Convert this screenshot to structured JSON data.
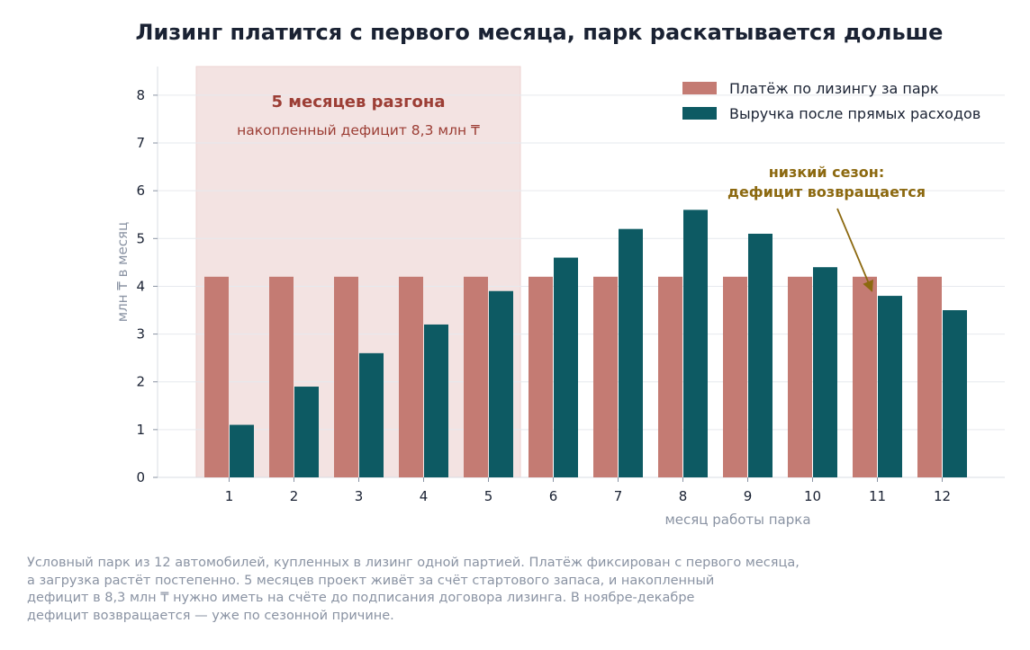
{
  "chart_data": {
    "type": "bar",
    "title": "Лизинг платится с первого месяца, парк раскатывается дольше",
    "xlabel": "месяц работы парка",
    "ylabel": "млн ₸ в месяц",
    "ylim": [
      0,
      8.6
    ],
    "yticks": [
      "0",
      "1",
      "2",
      "3",
      "4",
      "5",
      "6",
      "7",
      "8"
    ],
    "categories": [
      "1",
      "2",
      "3",
      "4",
      "5",
      "6",
      "7",
      "8",
      "9",
      "10",
      "11",
      "12"
    ],
    "series": [
      {
        "name": "Платёж по лизингу за парк",
        "color": "#c47b73",
        "values": [
          4.2,
          4.2,
          4.2,
          4.2,
          4.2,
          4.2,
          4.2,
          4.2,
          4.2,
          4.2,
          4.2,
          4.2
        ]
      },
      {
        "name": "Выручка после прямых расходов",
        "color": "#0d5a63",
        "values": [
          1.1,
          1.9,
          2.6,
          3.2,
          3.9,
          4.6,
          5.2,
          5.6,
          5.1,
          4.4,
          3.8,
          3.5
        ]
      }
    ],
    "grid": true,
    "legend_position": "top-right",
    "highlight": {
      "months": [
        "1",
        "5"
      ],
      "color": "#f3e3e2",
      "title": "5 месяцев разгона",
      "subtitle": "накопленный дефицит 8,3 млн ₸",
      "text_color": "#9c3e35"
    },
    "annotation": {
      "line1": "низкий сезон:",
      "line2": "дефицит возвращается",
      "target_month": "11",
      "target_value": 3.9,
      "color": "#8c6910"
    }
  },
  "footnote": {
    "lines": [
      "Условный парк из 12 автомобилей, купленных в лизинг одной партией. Платёж фиксирован с первого месяца,",
      "а загрузка растёт постепенно. 5 месяцев проект живёт за счёт стартового запаса, и накопленный",
      "дефицит в 8,3 млн ₸ нужно иметь на счёте до подписания договора лизинга. В ноябре-декабре",
      "дефицит возвращается — уже по сезонной причине."
    ]
  }
}
